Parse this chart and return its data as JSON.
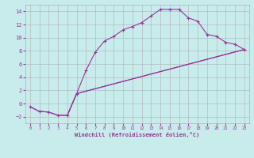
{
  "xlabel": "Windchill (Refroidissement éolien,°C)",
  "bg_color": "#c8ecec",
  "line_color": "#993399",
  "grid_color": "#b0b0b0",
  "xlim": [
    -0.5,
    23.5
  ],
  "ylim": [
    -3.0,
    15.0
  ],
  "xticks": [
    0,
    1,
    2,
    3,
    4,
    5,
    6,
    7,
    8,
    9,
    10,
    11,
    12,
    13,
    14,
    15,
    16,
    17,
    18,
    19,
    20,
    21,
    22,
    23
  ],
  "yticks": [
    -2,
    0,
    2,
    4,
    6,
    8,
    10,
    12,
    14
  ],
  "line1_x": [
    0,
    1,
    2,
    3,
    4,
    5,
    6,
    7,
    8,
    9,
    10,
    11,
    12,
    13,
    14,
    15,
    16,
    17,
    18,
    19,
    20,
    21,
    22,
    23
  ],
  "line1_y": [
    -0.5,
    -1.2,
    -1.3,
    -1.8,
    -1.8,
    1.5,
    5.0,
    7.8,
    9.5,
    10.2,
    11.2,
    11.7,
    12.3,
    13.3,
    14.3,
    14.3,
    14.3,
    13.0,
    12.5,
    10.5,
    10.2,
    9.3,
    9.0,
    8.2
  ],
  "line2_x": [
    4,
    5,
    23
  ],
  "line2_y": [
    -1.8,
    1.5,
    8.2
  ],
  "line3_x": [
    0,
    1,
    2,
    3,
    4,
    5,
    23
  ],
  "line3_y": [
    -0.5,
    -1.2,
    -1.3,
    -1.8,
    -1.8,
    1.5,
    8.2
  ]
}
